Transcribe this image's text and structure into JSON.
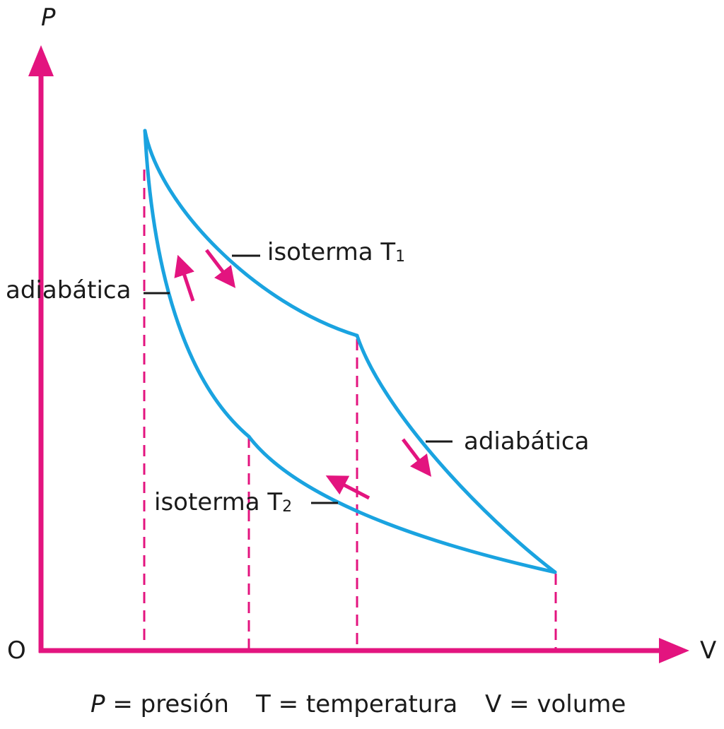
{
  "axes": {
    "y_label": "P",
    "x_label": "V",
    "origin_label": "O"
  },
  "curves": {
    "isotherm_hot": "isoterma T",
    "isotherm_hot_sub": "1",
    "isotherm_cold": "isoterma T",
    "isotherm_cold_sub": "2",
    "adiabatic_left": "adiabática",
    "adiabatic_right": "adiabática"
  },
  "legend": {
    "p_symbol": "P",
    "p_text": " = presión",
    "t_text": "T = temperatura",
    "v_text": "V = volume"
  },
  "colors": {
    "axis": "#e3147f",
    "curve": "#1aa3e0",
    "text": "#1a1a1a"
  }
}
